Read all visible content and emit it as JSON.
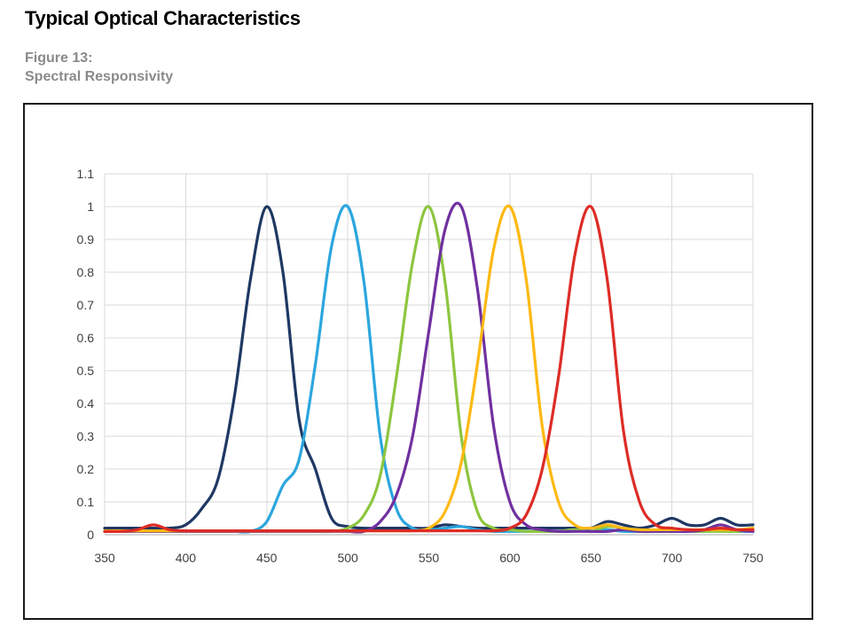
{
  "page": {
    "background": "#FFFFFF"
  },
  "header": {
    "title": "Typical Optical Characteristics",
    "figure_label": "Figure 13:",
    "figure_sublabel": "Spectral Responsivity",
    "title_color": "#000000",
    "label_color": "#8A8A8A"
  },
  "chart_data": {
    "type": "line",
    "title": "",
    "subtitle": "",
    "xlabel": "",
    "ylabel": "",
    "xlim": [
      350,
      750
    ],
    "ylim": [
      0,
      1.1
    ],
    "x_ticks": [
      350,
      400,
      450,
      500,
      550,
      600,
      650,
      700,
      750
    ],
    "y_ticks": [
      0,
      0.1,
      0.2,
      0.3,
      0.4,
      0.5,
      0.6,
      0.7,
      0.8,
      0.9,
      1,
      1.1
    ],
    "grid": true,
    "legend": "none",
    "line_width": 3.2,
    "colors": {
      "grid": "#D9D9D9",
      "axis": "#A8A8A8",
      "tick_text": "#3F3F3F",
      "frame": "#1A1A1A"
    },
    "x": [
      350,
      360,
      370,
      380,
      390,
      400,
      410,
      420,
      430,
      440,
      450,
      460,
      470,
      480,
      490,
      500,
      510,
      520,
      530,
      540,
      550,
      560,
      570,
      580,
      590,
      600,
      610,
      620,
      630,
      640,
      650,
      660,
      670,
      680,
      690,
      700,
      710,
      720,
      730,
      740,
      750
    ],
    "series": [
      {
        "name": "blue-450nm-channel",
        "peak_nm": 450,
        "color": "#1F3864",
        "y": [
          0.02,
          0.02,
          0.02,
          0.02,
          0.02,
          0.03,
          0.08,
          0.17,
          0.42,
          0.78,
          1.0,
          0.8,
          0.35,
          0.2,
          0.05,
          0.025,
          0.02,
          0.02,
          0.02,
          0.02,
          0.02,
          0.03,
          0.025,
          0.02,
          0.02,
          0.02,
          0.02,
          0.02,
          0.02,
          0.02,
          0.02,
          0.04,
          0.03,
          0.02,
          0.03,
          0.05,
          0.03,
          0.03,
          0.05,
          0.03,
          0.03
        ]
      },
      {
        "name": "cyan-500nm-channel",
        "peak_nm": 500,
        "color": "#2BA6DE",
        "y": [
          0.01,
          0.01,
          0.01,
          0.01,
          0.01,
          0.01,
          0.01,
          0.01,
          0.01,
          0.01,
          0.04,
          0.15,
          0.23,
          0.52,
          0.88,
          1.0,
          0.77,
          0.3,
          0.08,
          0.02,
          0.015,
          0.02,
          0.025,
          0.015,
          0.01,
          0.01,
          0.01,
          0.01,
          0.01,
          0.015,
          0.01,
          0.015,
          0.01,
          0.01,
          0.01,
          0.01,
          0.01,
          0.01,
          0.015,
          0.01,
          0.01
        ]
      },
      {
        "name": "green-550nm-channel",
        "peak_nm": 550,
        "color": "#8DC63F",
        "y": [
          0.01,
          0.01,
          0.01,
          0.01,
          0.01,
          0.01,
          0.01,
          0.01,
          0.01,
          0.01,
          0.01,
          0.01,
          0.01,
          0.01,
          0.01,
          0.02,
          0.06,
          0.18,
          0.48,
          0.83,
          1.0,
          0.77,
          0.3,
          0.07,
          0.02,
          0.015,
          0.01,
          0.01,
          0.01,
          0.015,
          0.01,
          0.025,
          0.02,
          0.01,
          0.01,
          0.01,
          0.01,
          0.01,
          0.01,
          0.01,
          0.015
        ]
      },
      {
        "name": "purple-570nm-channel",
        "peak_nm": 570,
        "color": "#7030A0",
        "y": [
          0.01,
          0.01,
          0.01,
          0.01,
          0.01,
          0.01,
          0.01,
          0.01,
          0.01,
          0.01,
          0.01,
          0.01,
          0.01,
          0.01,
          0.01,
          0.01,
          0.01,
          0.04,
          0.12,
          0.3,
          0.62,
          0.93,
          1.0,
          0.75,
          0.33,
          0.1,
          0.03,
          0.015,
          0.01,
          0.01,
          0.01,
          0.01,
          0.015,
          0.01,
          0.01,
          0.01,
          0.01,
          0.015,
          0.03,
          0.015,
          0.01
        ]
      },
      {
        "name": "yellow-600nm-channel",
        "peak_nm": 600,
        "color": "#FDB913",
        "y": [
          0.012,
          0.012,
          0.012,
          0.012,
          0.012,
          0.012,
          0.012,
          0.012,
          0.012,
          0.012,
          0.012,
          0.012,
          0.012,
          0.012,
          0.012,
          0.012,
          0.012,
          0.012,
          0.012,
          0.012,
          0.02,
          0.07,
          0.22,
          0.52,
          0.87,
          1.0,
          0.78,
          0.33,
          0.1,
          0.03,
          0.02,
          0.03,
          0.02,
          0.015,
          0.015,
          0.015,
          0.015,
          0.015,
          0.015,
          0.015,
          0.02
        ]
      },
      {
        "name": "red-650nm-channel",
        "peak_nm": 650,
        "color": "#DD2C26",
        "y": [
          0.01,
          0.01,
          0.015,
          0.03,
          0.015,
          0.012,
          0.012,
          0.012,
          0.012,
          0.012,
          0.012,
          0.012,
          0.012,
          0.012,
          0.012,
          0.012,
          0.012,
          0.012,
          0.012,
          0.012,
          0.012,
          0.012,
          0.012,
          0.012,
          0.012,
          0.02,
          0.06,
          0.2,
          0.48,
          0.85,
          1.0,
          0.78,
          0.32,
          0.1,
          0.03,
          0.02,
          0.015,
          0.015,
          0.02,
          0.015,
          0.015
        ]
      }
    ]
  }
}
